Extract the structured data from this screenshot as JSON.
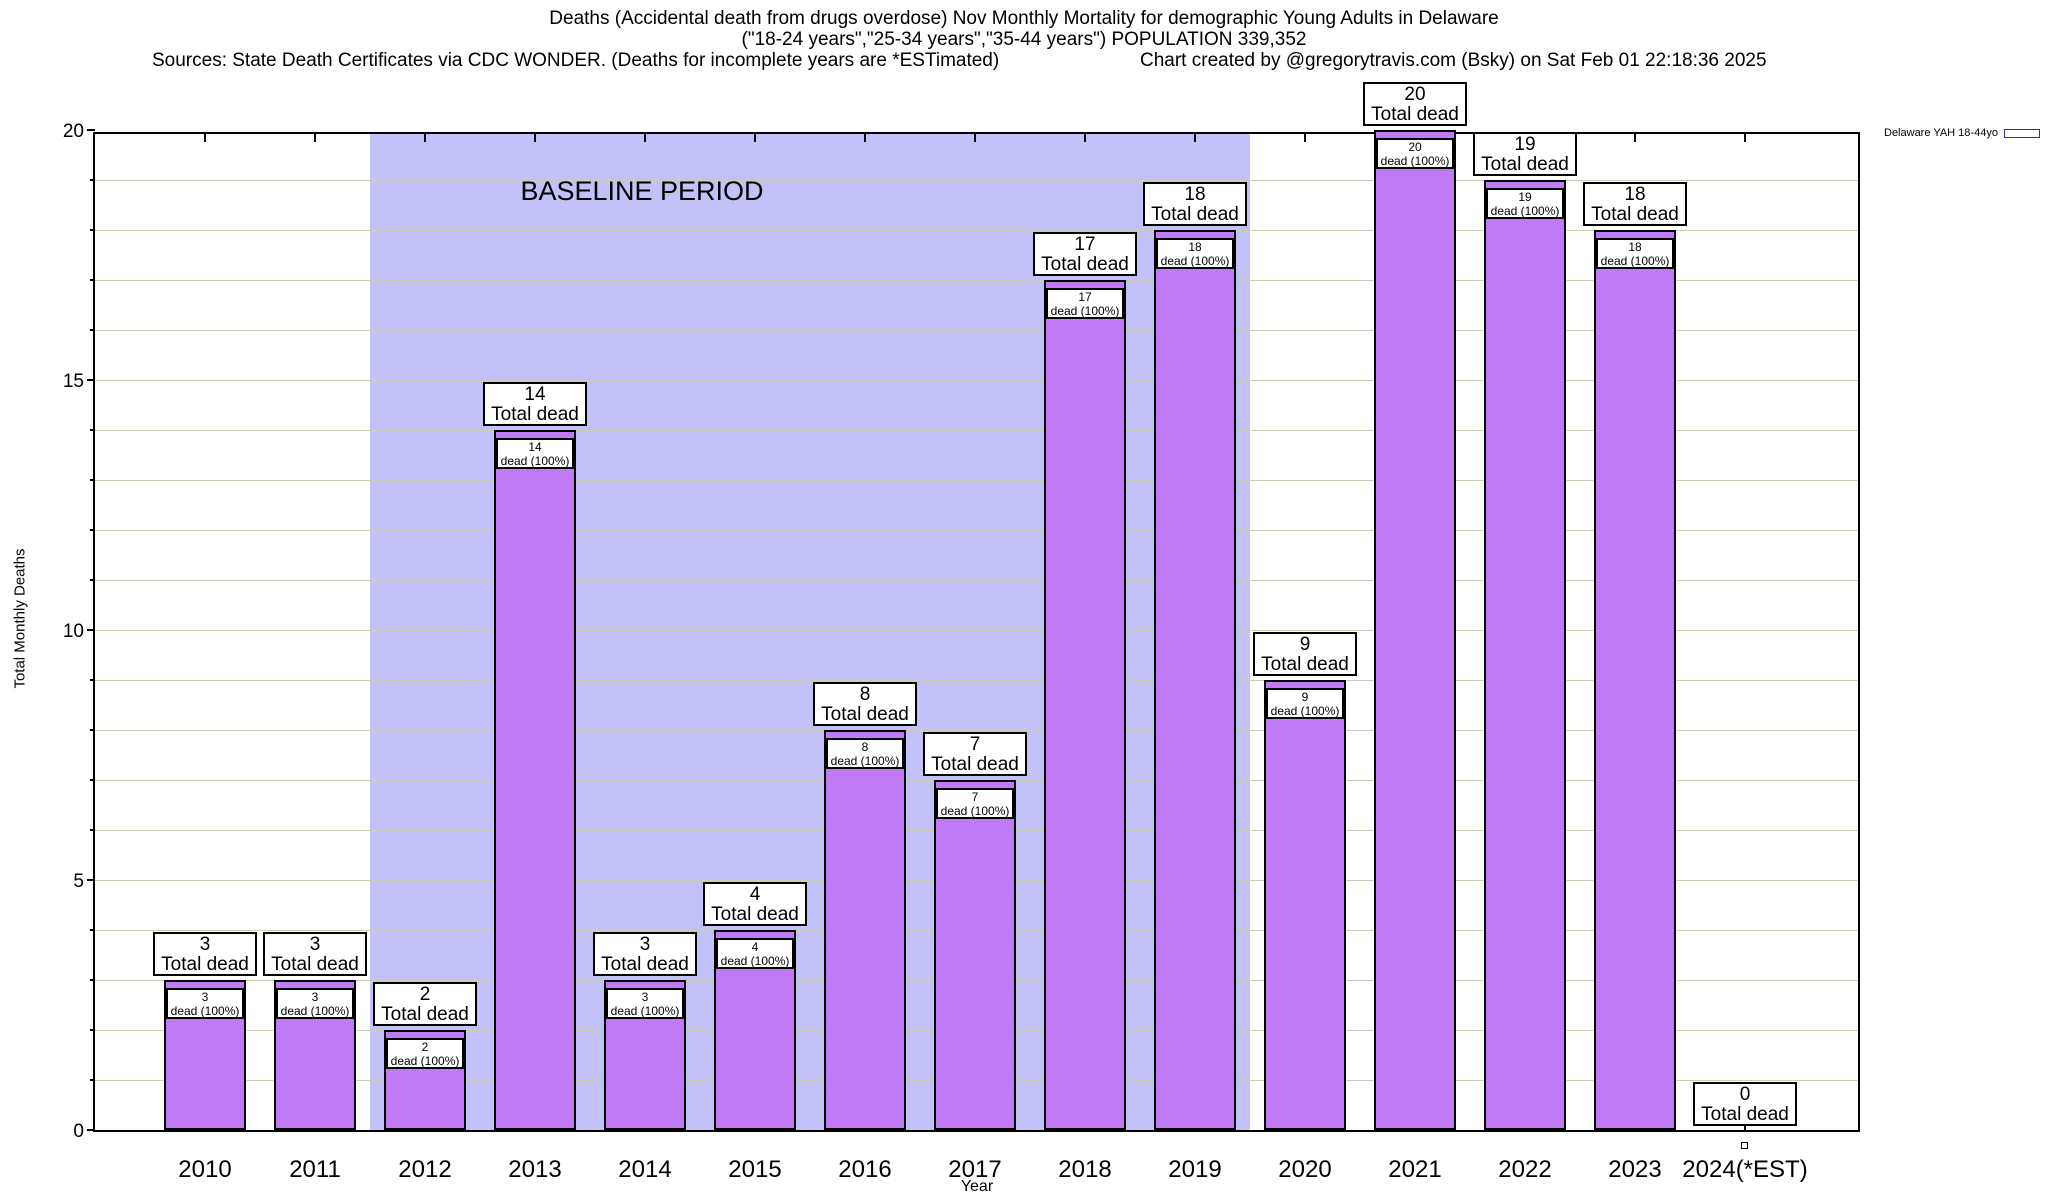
{
  "title": {
    "line1": "Deaths (Accidental death from drugs overdose) Nov Monthly Mortality for demographic Young Adults in Delaware",
    "line2": "(\"18-24 years\",\"25-34 years\",\"35-44 years\") POPULATION 339,352",
    "sources": "Sources: State Death Certificates via CDC WONDER. (Deaths for incomplete years are *ESTimated)",
    "credit": "Chart created by @gregorytravis.com (Bsky) on Sat Feb 01 22:18:36 2025"
  },
  "axes": {
    "y_label": "Total Monthly Deaths",
    "x_label": "Year",
    "y_tick_labels": [
      "0",
      "5",
      "10",
      "15",
      "20"
    ]
  },
  "legend": {
    "label": "Delaware YAH 18-44yo"
  },
  "annotations": {
    "baseline_label": "BASELINE PERIOD"
  },
  "bar_text": {
    "big_suffix": "Total dead",
    "small_suffix": "dead (100%)"
  },
  "colors": {
    "bar_fill": "#c17af5",
    "bar_border": "#000000",
    "baseline_region": "#c2c2f8",
    "gridline": "#ccccb8",
    "label_box_bg": "#ffffff",
    "label_box_border": "#000000"
  },
  "chart_data": {
    "type": "bar",
    "title": "Deaths (Accidental death from drugs overdose) Nov Monthly Mortality for demographic Young Adults in Delaware",
    "subtitle": "(\"18-24 years\",\"25-34 years\",\"35-44 years\") POPULATION 339,352",
    "xlabel": "Year",
    "ylabel": "Total Monthly Deaths",
    "ylim": [
      0,
      20
    ],
    "y_major_ticks": [
      0,
      5,
      10,
      15,
      20
    ],
    "grid": "horizontal, every 1 unit",
    "legend_position": "top-right, outside plot",
    "categories": [
      "2010",
      "2011",
      "2012",
      "2013",
      "2014",
      "2015",
      "2016",
      "2017",
      "2018",
      "2019",
      "2020",
      "2021",
      "2022",
      "2023",
      "2024(*EST)"
    ],
    "series": [
      {
        "name": "Delaware YAH 18-44yo",
        "values": [
          3,
          3,
          2,
          14,
          3,
          4,
          8,
          7,
          17,
          18,
          9,
          20,
          19,
          18,
          0
        ]
      }
    ],
    "bar_labels_big": [
      "3",
      "3",
      "2",
      "14",
      "3",
      "4",
      "8",
      "7",
      "17",
      "18",
      "9",
      "20",
      "19",
      "18",
      "0"
    ],
    "baseline_period": {
      "label": "BASELINE PERIOD",
      "from_category": "2012",
      "to_category": "2019"
    }
  }
}
